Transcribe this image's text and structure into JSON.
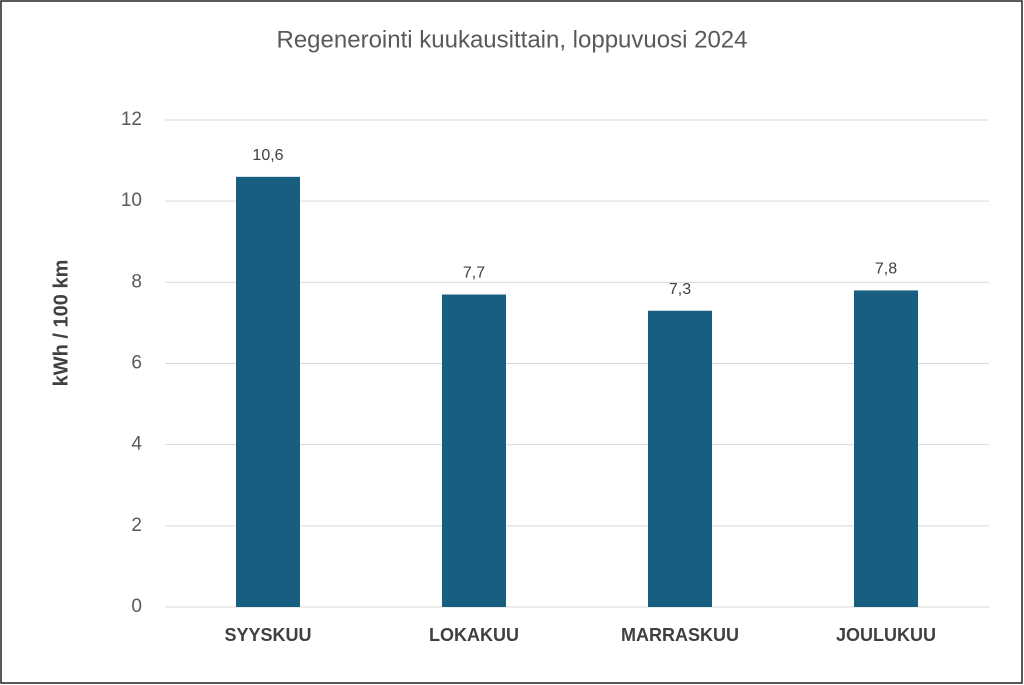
{
  "chart_data": {
    "type": "bar",
    "title": "Regenerointi kuukausittain, loppuvuosi 2024",
    "y_label": "kWh / 100 km",
    "categories": [
      "SYYSKUU",
      "LOKAKUU",
      "MARRASKUU",
      "JOULUKUU"
    ],
    "values": [
      10.6,
      7.7,
      7.3,
      7.8
    ],
    "value_labels": [
      "10,6",
      "7,7",
      "7,3",
      "7,8"
    ],
    "color": "#175e80",
    "ylim": [
      0,
      12
    ],
    "yticks": [
      0,
      2,
      4,
      6,
      8,
      10,
      12
    ],
    "grid": true
  }
}
